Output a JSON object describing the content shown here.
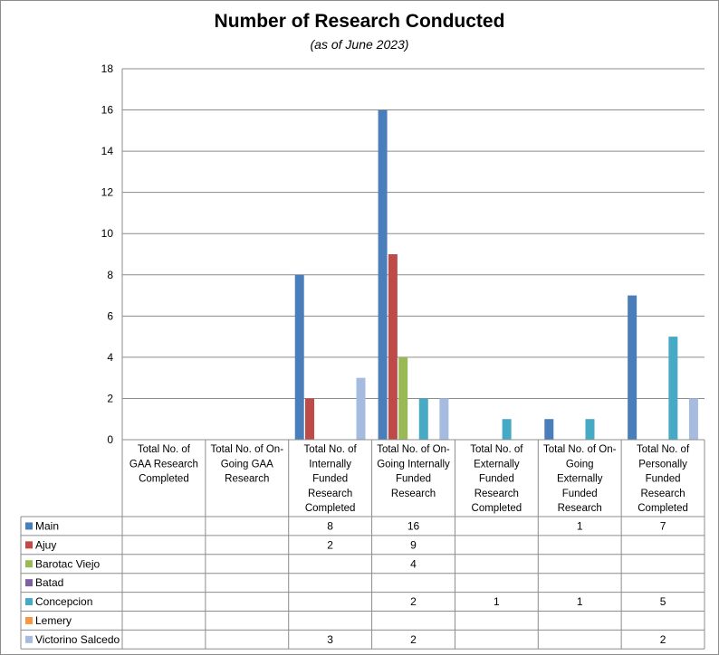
{
  "chart_data": {
    "type": "bar",
    "title": "Number of Research Conducted",
    "subtitle": "(as of June 2023)",
    "xlabel": "",
    "ylabel": "",
    "ylim": [
      0,
      18
    ],
    "yticks": [
      "0",
      "2",
      "4",
      "6",
      "8",
      "10",
      "12",
      "14",
      "16",
      "18"
    ],
    "grid": true,
    "legend": "table-left",
    "categories": [
      [
        "Total No. of",
        "GAA Research",
        "Completed"
      ],
      [
        "Total No. of On-",
        "Going GAA",
        "Research"
      ],
      [
        "Total No. of",
        "Internally",
        "Funded",
        "Research",
        "Completed"
      ],
      [
        "Total No. of On-",
        "Going Internally",
        "Funded",
        "Research"
      ],
      [
        "Total No. of",
        "Externally",
        "Funded",
        "Research",
        "Completed"
      ],
      [
        "Total No. of On-",
        "Going",
        "Externally",
        "Funded",
        "Research"
      ],
      [
        "Total No. of",
        "Personally",
        "Funded",
        "Research",
        "Completed"
      ]
    ],
    "series": [
      {
        "name": "Main",
        "color": "#4a7ebb",
        "values": [
          null,
          null,
          8,
          16,
          null,
          1,
          7
        ]
      },
      {
        "name": "Ajuy",
        "color": "#be4b48",
        "values": [
          null,
          null,
          2,
          9,
          null,
          null,
          null
        ]
      },
      {
        "name": "Barotac Viejo",
        "color": "#98b954",
        "values": [
          null,
          null,
          null,
          4,
          null,
          null,
          null
        ]
      },
      {
        "name": "Batad",
        "color": "#7d60a0",
        "values": [
          null,
          null,
          null,
          null,
          null,
          null,
          null
        ]
      },
      {
        "name": "Concepcion",
        "color": "#46aac5",
        "values": [
          null,
          null,
          null,
          2,
          1,
          1,
          5
        ]
      },
      {
        "name": "Lemery",
        "color": "#f79646",
        "values": [
          null,
          null,
          null,
          null,
          null,
          null,
          null
        ]
      },
      {
        "name": "Victorino Salcedo",
        "color": "#a5bbdf",
        "values": [
          null,
          null,
          3,
          2,
          null,
          null,
          2
        ]
      }
    ]
  }
}
